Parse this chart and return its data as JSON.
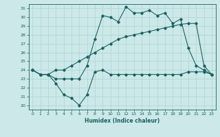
{
  "xlabel": "Humidex (Indice chaleur)",
  "bg_color": "#cce8e8",
  "line_color": "#1a6060",
  "grid_color": "#b0d8d8",
  "xlim": [
    -0.5,
    23.5
  ],
  "ylim": [
    19.5,
    31.5
  ],
  "xticks": [
    0,
    1,
    2,
    3,
    4,
    5,
    6,
    7,
    8,
    9,
    10,
    11,
    12,
    13,
    14,
    15,
    16,
    17,
    18,
    19,
    20,
    21,
    22,
    23
  ],
  "yticks": [
    20,
    21,
    22,
    23,
    24,
    25,
    26,
    27,
    28,
    29,
    30,
    31
  ],
  "line1_x": [
    0,
    1,
    2,
    3,
    4,
    5,
    6,
    7,
    8,
    9,
    10,
    11,
    12,
    13,
    14,
    15,
    16,
    17,
    18,
    19,
    20,
    21,
    22,
    23
  ],
  "line1_y": [
    24.0,
    23.5,
    23.5,
    23.0,
    23.0,
    23.0,
    23.0,
    24.5,
    27.5,
    30.2,
    30.0,
    29.5,
    31.2,
    30.5,
    30.5,
    30.8,
    30.2,
    30.5,
    29.3,
    29.8,
    26.5,
    24.5,
    24.0,
    23.5
  ],
  "line2_x": [
    0,
    1,
    2,
    3,
    4,
    5,
    6,
    7,
    8,
    9,
    10,
    11,
    12,
    13,
    14,
    15,
    16,
    17,
    18,
    19,
    20,
    21,
    22,
    23
  ],
  "line2_y": [
    24.0,
    23.5,
    23.5,
    24.0,
    24.0,
    24.5,
    25.0,
    25.5,
    26.0,
    26.5,
    27.0,
    27.5,
    27.8,
    28.0,
    28.2,
    28.4,
    28.6,
    28.8,
    29.0,
    29.2,
    29.3,
    29.3,
    24.5,
    23.5
  ],
  "line3_x": [
    0,
    1,
    2,
    3,
    4,
    5,
    6,
    7,
    8,
    9,
    10,
    11,
    12,
    13,
    14,
    15,
    16,
    17,
    18,
    19,
    20,
    21,
    22,
    23
  ],
  "line3_y": [
    24.0,
    23.5,
    23.5,
    22.5,
    21.2,
    20.8,
    20.0,
    21.2,
    23.8,
    24.0,
    23.5,
    23.5,
    23.5,
    23.5,
    23.5,
    23.5,
    23.5,
    23.5,
    23.5,
    23.5,
    23.8,
    23.8,
    23.8,
    23.5
  ]
}
